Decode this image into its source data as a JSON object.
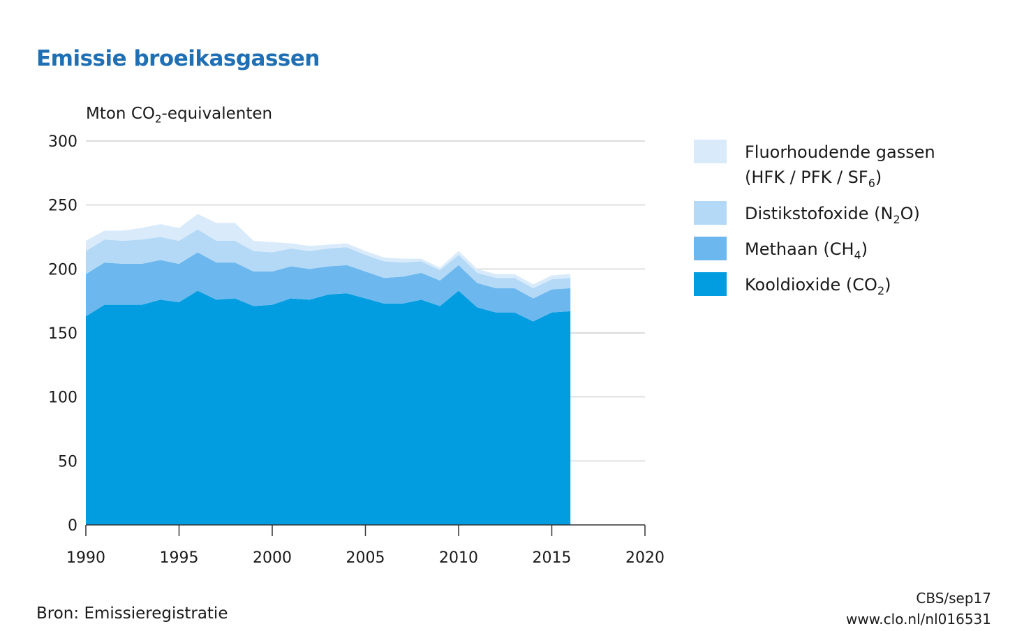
{
  "title": "Emissie broeikasgassen",
  "ylabel": {
    "main": "Mton CO",
    "sub": "2",
    "rest": "-equivalenten"
  },
  "source": "Bron: Emissieregistratie",
  "credit": {
    "line1": "CBS/sep17",
    "line2": "www.clo.nl/nl016531"
  },
  "legend": [
    {
      "key": "f_gas",
      "label": "Fluorhoudende gassen",
      "line2_main": "(HFK / PFK / SF",
      "line2_sub": "6",
      "line2_rest": ")",
      "color": "#d9ebfb"
    },
    {
      "key": "n2o",
      "label_main": "Distikstofoxide (N",
      "label_sub": "2",
      "label_rest": "O)",
      "color": "#b4d9f6"
    },
    {
      "key": "ch4",
      "label_main": "Methaan (CH",
      "label_sub": "4",
      "label_rest": ")",
      "color": "#6cb8ee"
    },
    {
      "key": "co2",
      "label_main": "Kooldioxide (CO",
      "label_sub": "2",
      "label_rest": ")",
      "color": "#029de0"
    }
  ],
  "chart_data": {
    "type": "area",
    "stacked": true,
    "title": "Emissie broeikasgassen",
    "ylabel": "Mton CO2-equivalenten",
    "xlabel": "",
    "xlim": [
      1990,
      2020
    ],
    "ylim": [
      0,
      300
    ],
    "xticks": [
      1990,
      1995,
      2000,
      2005,
      2010,
      2015,
      2020
    ],
    "yticks": [
      0,
      50,
      100,
      150,
      200,
      250,
      300
    ],
    "grid": "horizontal",
    "legend_position": "right",
    "x": [
      1990,
      1991,
      1992,
      1993,
      1994,
      1995,
      1996,
      1997,
      1998,
      1999,
      2000,
      2001,
      2002,
      2003,
      2004,
      2005,
      2006,
      2007,
      2008,
      2009,
      2010,
      2011,
      2012,
      2013,
      2014,
      2015,
      2016
    ],
    "series": [
      {
        "name": "Kooldioxide (CO2)",
        "color": "#029de0",
        "values": [
          163,
          172,
          172,
          172,
          176,
          174,
          183,
          176,
          177,
          171,
          172,
          177,
          176,
          180,
          181,
          177,
          173,
          173,
          176,
          171,
          183,
          170,
          166,
          166,
          159,
          166,
          167
        ]
      },
      {
        "name": "Methaan (CH4)",
        "color": "#6cb8ee",
        "values": [
          33,
          33,
          32,
          32,
          31,
          30,
          30,
          29,
          28,
          27,
          26,
          25,
          24,
          22,
          22,
          21,
          20,
          21,
          21,
          20,
          20,
          19,
          19,
          19,
          18,
          18,
          18
        ]
      },
      {
        "name": "Distikstofoxide (N2O)",
        "color": "#b4d9f6",
        "values": [
          18,
          18,
          18,
          19,
          18,
          18,
          18,
          17,
          17,
          16,
          15,
          14,
          14,
          14,
          14,
          13,
          13,
          11,
          9,
          8,
          8,
          8,
          8,
          8,
          8,
          8,
          8
        ]
      },
      {
        "name": "Fluorhoudende gassen (HFK / PFK / SF6)",
        "color": "#d9ebfb",
        "values": [
          8,
          7,
          8,
          9,
          10,
          10,
          12,
          14,
          14,
          8,
          8,
          4,
          4,
          3,
          3,
          3,
          3,
          3,
          2,
          2,
          3,
          3,
          3,
          3,
          3,
          3,
          3
        ]
      }
    ]
  }
}
